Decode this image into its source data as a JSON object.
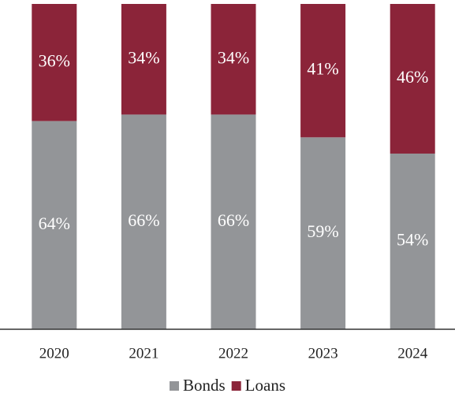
{
  "chart_data": {
    "type": "stacked_bar",
    "categories": [
      "2020",
      "2021",
      "2022",
      "2023",
      "2024"
    ],
    "series": [
      {
        "name": "Bonds",
        "color": "#939598",
        "values": [
          64,
          66,
          66,
          59,
          54
        ],
        "value_labels": [
          "64%",
          "66%",
          "66%",
          "59%",
          "54%"
        ]
      },
      {
        "name": "Loans",
        "color": "#8b2439",
        "values": [
          36,
          34,
          34,
          41,
          46
        ],
        "value_labels": [
          "36%",
          "34%",
          "34%",
          "41%",
          "46%"
        ]
      }
    ],
    "legend": "bottom"
  }
}
